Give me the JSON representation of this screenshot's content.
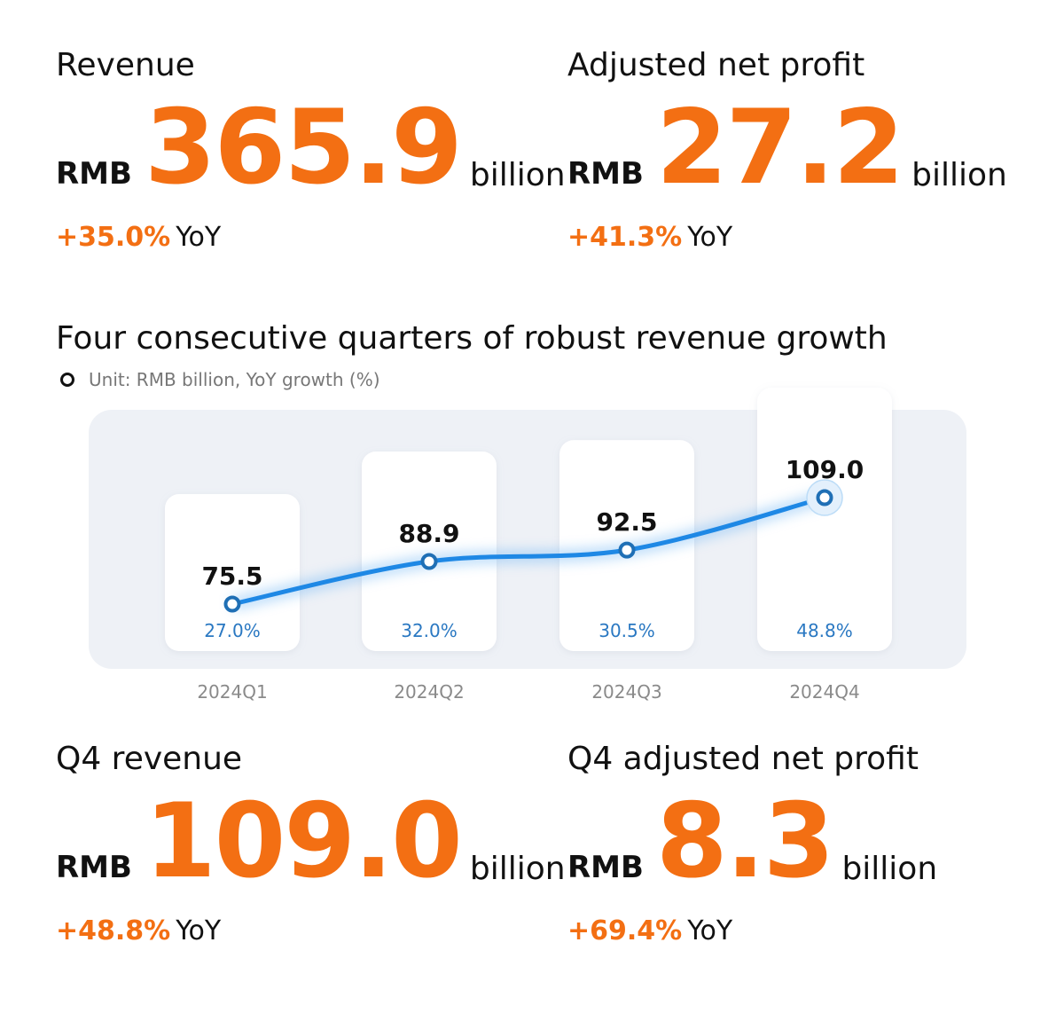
{
  "kpis": {
    "revenue": {
      "label": "Revenue",
      "currency": "RMB",
      "value": "365.9",
      "unit": "billion",
      "growth": "+35.0%",
      "growth_suffix": "YoY"
    },
    "profit": {
      "label": "Adjusted net profit",
      "currency": "RMB",
      "value": "27.2",
      "unit": "billion",
      "growth": "+41.3%",
      "growth_suffix": "YoY"
    },
    "q4_revenue": {
      "label": "Q4 revenue",
      "currency": "RMB",
      "value": "109.0",
      "unit": "billion",
      "growth": "+48.8%",
      "growth_suffix": "YoY"
    },
    "q4_profit": {
      "label": "Q4 adjusted net profit",
      "currency": "RMB",
      "value": "8.3",
      "unit": "billion",
      "growth": "+69.4%",
      "growth_suffix": "YoY"
    }
  },
  "chart_data": {
    "type": "line",
    "title": "Four consecutive quarters of robust revenue growth",
    "unit_note": "Unit: RMB billion, YoY growth (%)",
    "categories": [
      "2024Q1",
      "2024Q2",
      "2024Q3",
      "2024Q4"
    ],
    "series": [
      {
        "values": [
          75.5,
          88.9,
          92.5,
          109.0
        ],
        "labels": [
          "75.5",
          "88.9",
          "92.5",
          "109.0"
        ]
      }
    ],
    "growth_labels": [
      "27.0%",
      "32.0%",
      "30.5%",
      "48.8%"
    ],
    "grid": false,
    "colors": {
      "line": "#1e88e5",
      "marker_stroke": "#1f6fb5",
      "growth_text": "#2a78c2",
      "category_text": "#8a8a8a",
      "accent": "#f36f13"
    }
  }
}
